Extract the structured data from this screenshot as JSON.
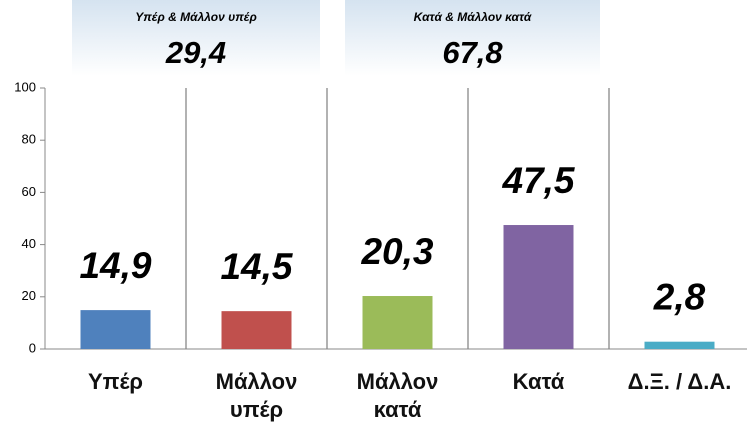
{
  "chart_data": {
    "type": "bar",
    "categories": [
      "Υπέρ",
      "Μάλλον\nυπέρ",
      "Μάλλον\nκατά",
      "Κατά",
      "Δ.Ξ. / Δ.Α."
    ],
    "values": [
      14.9,
      14.5,
      20.3,
      47.5,
      2.8
    ],
    "value_labels": [
      "14,9",
      "14,5",
      "20,3",
      "47,5",
      "2,8"
    ],
    "colors": [
      "#4f81bd",
      "#c0504d",
      "#9bbb59",
      "#8064a2",
      "#4bacc6"
    ],
    "ylim": [
      0,
      100
    ],
    "yticks": [
      0,
      20,
      40,
      60,
      80,
      100
    ],
    "annotations": [
      {
        "title": "Υπέρ & Μάλλον υπέρ",
        "value": "29,4"
      },
      {
        "title": "Κατά & Μάλλον κατά",
        "value": "67,8"
      }
    ]
  }
}
